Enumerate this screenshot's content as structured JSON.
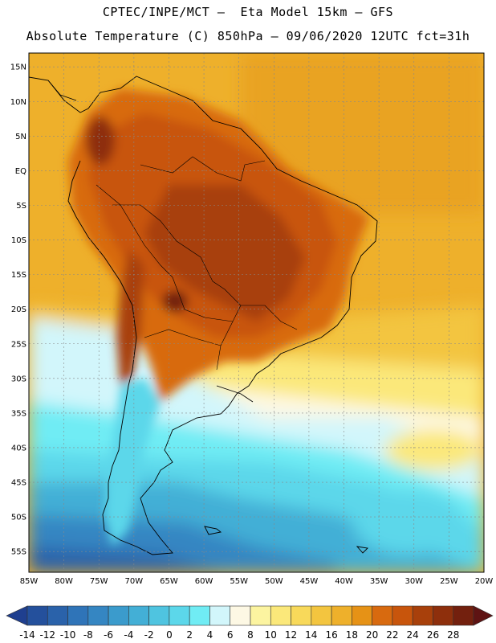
{
  "header": {
    "line1": "CPTEC/INPE/MCT –  Eta Model 15km – GFS",
    "line2": "Absolute Temperature (C) 850hPa – 09/06/2020 12UTC fct=31h"
  },
  "map": {
    "lat_labels": [
      "15N",
      "10N",
      "5N",
      "EQ",
      "5S",
      "10S",
      "15S",
      "20S",
      "25S",
      "30S",
      "35S",
      "40S",
      "45S",
      "50S",
      "55S"
    ],
    "lon_labels": [
      "85W",
      "80W",
      "75W",
      "70W",
      "65W",
      "60W",
      "55W",
      "50W",
      "45W",
      "40W",
      "35W",
      "30W",
      "25W",
      "20W"
    ],
    "lon_range": [
      -85,
      -20
    ],
    "lat_range": [
      -58,
      17
    ]
  },
  "colorbar": {
    "labels": [
      "-14",
      "-12",
      "-10",
      "-8",
      "-6",
      "-4",
      "-2",
      "0",
      "2",
      "4",
      "6",
      "8",
      "10",
      "12",
      "14",
      "16",
      "18",
      "20",
      "22",
      "24",
      "26",
      "28"
    ],
    "colors": [
      "#1f3f8f",
      "#24509c",
      "#2a62aa",
      "#2f74b8",
      "#3586c2",
      "#3b9bcc",
      "#43afd6",
      "#4fc4e0",
      "#5cd7ea",
      "#70ecf4",
      "#d2f6fb",
      "#fdf8e4",
      "#fcf4a0",
      "#fbe87a",
      "#f8d95a",
      "#f3c53f",
      "#eeb02b",
      "#e69216",
      "#d86a0f",
      "#c8550c",
      "#a8400b",
      "#8e2f0c",
      "#73200e",
      "#5e1313"
    ]
  }
}
